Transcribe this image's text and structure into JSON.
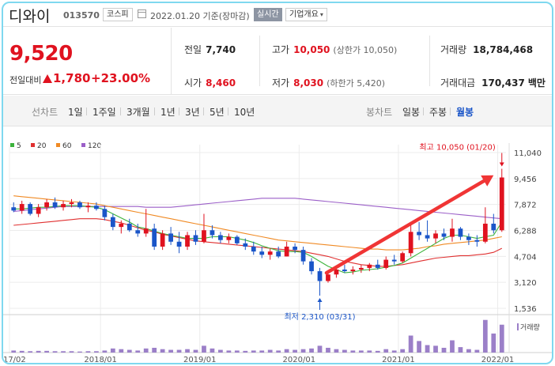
{
  "header": {
    "stock_name": "디와이",
    "stock_code": "013570",
    "market": "코스피",
    "date": "2022.01.20 기준(장마감)",
    "realtime": "실시간",
    "company_info": "기업개요",
    "chevron": "▾"
  },
  "price": {
    "current": "9,520",
    "change_label": "전일대비",
    "change_value": "1,780",
    "change_pct": "+23.00%"
  },
  "stats": {
    "prev_close_label": "전일",
    "prev_close": "7,740",
    "open_label": "시가",
    "open": "8,460",
    "high_label": "고가",
    "high": "10,050",
    "high_sub": "(상한가 10,050)",
    "low_label": "저가",
    "low": "8,030",
    "low_sub": "(하한가 5,420)",
    "volume_label": "거래량",
    "volume": "18,784,468",
    "amount_label": "거래대금",
    "amount": "170,437",
    "amount_unit": "백만"
  },
  "toolbar": {
    "line_chart": "선차트",
    "periods": [
      "1일",
      "1주일",
      "3개월",
      "1년",
      "3년",
      "5년",
      "10년"
    ],
    "candle_chart": "봉차트",
    "candle_types": [
      "일봉",
      "주봉",
      "월봉"
    ],
    "active_candle": "월봉"
  },
  "chart_data": {
    "type": "candlestick",
    "legend": [
      {
        "name": "5",
        "color": "#3cb33c"
      },
      {
        "name": "20",
        "color": "#e03030"
      },
      {
        "name": "60",
        "color": "#f08a24"
      },
      {
        "name": "120",
        "color": "#9b5fc8"
      }
    ],
    "y_ticks": [
      "11,040",
      "9,456",
      "7,872",
      "6,288",
      "4,704",
      "3,120",
      "1,536"
    ],
    "y_range": [
      1536,
      11040
    ],
    "x_ticks": [
      {
        "label": "2017/02",
        "i": 0
      },
      {
        "label": "2018/01",
        "i": 11
      },
      {
        "label": "2019/01",
        "i": 23
      },
      {
        "label": "2020/01",
        "i": 35
      },
      {
        "label": "2021/01",
        "i": 47
      },
      {
        "label": "2022/01",
        "i": 59
      }
    ],
    "volume_label": "거래량",
    "max_annotation": "최고 10,050 (01/20)",
    "min_annotation": "최저 2,310 (03/31)",
    "max_point": {
      "i": 59,
      "value": 10050
    },
    "min_point": {
      "i": 37,
      "value": 2310
    },
    "candles": [
      {
        "o": 7700,
        "h": 8000,
        "l": 7400,
        "c": 7500
      },
      {
        "o": 7500,
        "h": 8100,
        "l": 7300,
        "c": 7900
      },
      {
        "o": 7900,
        "h": 8000,
        "l": 7200,
        "c": 7300
      },
      {
        "o": 7300,
        "h": 7900,
        "l": 7100,
        "c": 7700
      },
      {
        "o": 7700,
        "h": 8200,
        "l": 7500,
        "c": 8000
      },
      {
        "o": 8000,
        "h": 8300,
        "l": 7600,
        "c": 7700
      },
      {
        "o": 7700,
        "h": 8100,
        "l": 7500,
        "c": 7900
      },
      {
        "o": 7900,
        "h": 8200,
        "l": 7700,
        "c": 8000
      },
      {
        "o": 8000,
        "h": 8100,
        "l": 7600,
        "c": 7700
      },
      {
        "o": 7700,
        "h": 8000,
        "l": 7400,
        "c": 7800
      },
      {
        "o": 7800,
        "h": 8000,
        "l": 7500,
        "c": 7600
      },
      {
        "o": 7600,
        "h": 7800,
        "l": 6900,
        "c": 7100
      },
      {
        "o": 7100,
        "h": 7300,
        "l": 6300,
        "c": 6500
      },
      {
        "o": 6500,
        "h": 6900,
        "l": 6100,
        "c": 6700
      },
      {
        "o": 6700,
        "h": 7000,
        "l": 6200,
        "c": 6300
      },
      {
        "o": 6300,
        "h": 6700,
        "l": 5900,
        "c": 6100
      },
      {
        "o": 6100,
        "h": 7600,
        "l": 5900,
        "c": 6400
      },
      {
        "o": 6400,
        "h": 6700,
        "l": 5100,
        "c": 5300
      },
      {
        "o": 5300,
        "h": 6300,
        "l": 5100,
        "c": 6100
      },
      {
        "o": 6100,
        "h": 6500,
        "l": 5400,
        "c": 5600
      },
      {
        "o": 5600,
        "h": 6200,
        "l": 4900,
        "c": 5300
      },
      {
        "o": 5300,
        "h": 6200,
        "l": 5100,
        "c": 6000
      },
      {
        "o": 6000,
        "h": 6300,
        "l": 5400,
        "c": 5600
      },
      {
        "o": 5600,
        "h": 7300,
        "l": 5500,
        "c": 6300
      },
      {
        "o": 6300,
        "h": 6600,
        "l": 5800,
        "c": 6000
      },
      {
        "o": 6000,
        "h": 6200,
        "l": 5500,
        "c": 5700
      },
      {
        "o": 5700,
        "h": 6100,
        "l": 5500,
        "c": 5900
      },
      {
        "o": 5900,
        "h": 6000,
        "l": 5400,
        "c": 5500
      },
      {
        "o": 5500,
        "h": 5800,
        "l": 5100,
        "c": 5300
      },
      {
        "o": 5300,
        "h": 5600,
        "l": 4800,
        "c": 5000
      },
      {
        "o": 5000,
        "h": 5300,
        "l": 4600,
        "c": 4800
      },
      {
        "o": 4800,
        "h": 5200,
        "l": 4500,
        "c": 5000
      },
      {
        "o": 5000,
        "h": 5300,
        "l": 4600,
        "c": 4700
      },
      {
        "o": 4700,
        "h": 5600,
        "l": 4700,
        "c": 5300
      },
      {
        "o": 5300,
        "h": 5500,
        "l": 4900,
        "c": 5100
      },
      {
        "o": 5100,
        "h": 5300,
        "l": 4200,
        "c": 4400
      },
      {
        "o": 4400,
        "h": 4600,
        "l": 3600,
        "c": 3800
      },
      {
        "o": 3800,
        "h": 4000,
        "l": 2310,
        "c": 3200
      },
      {
        "o": 3200,
        "h": 3800,
        "l": 3100,
        "c": 3600
      },
      {
        "o": 3600,
        "h": 4100,
        "l": 3400,
        "c": 3900
      },
      {
        "o": 3900,
        "h": 4200,
        "l": 3700,
        "c": 3800
      },
      {
        "o": 3800,
        "h": 4100,
        "l": 3600,
        "c": 3900
      },
      {
        "o": 3900,
        "h": 4200,
        "l": 3700,
        "c": 4000
      },
      {
        "o": 4000,
        "h": 4300,
        "l": 3800,
        "c": 4200
      },
      {
        "o": 4200,
        "h": 4500,
        "l": 3900,
        "c": 4000
      },
      {
        "o": 4000,
        "h": 4700,
        "l": 3900,
        "c": 4500
      },
      {
        "o": 4500,
        "h": 4800,
        "l": 4200,
        "c": 4400
      },
      {
        "o": 4400,
        "h": 5000,
        "l": 4300,
        "c": 4900
      },
      {
        "o": 4900,
        "h": 6600,
        "l": 4700,
        "c": 6200
      },
      {
        "o": 6200,
        "h": 6800,
        "l": 5700,
        "c": 6000
      },
      {
        "o": 6000,
        "h": 6900,
        "l": 5600,
        "c": 5800
      },
      {
        "o": 5800,
        "h": 6300,
        "l": 5500,
        "c": 6100
      },
      {
        "o": 6100,
        "h": 6400,
        "l": 5700,
        "c": 5900
      },
      {
        "o": 5900,
        "h": 7000,
        "l": 5600,
        "c": 6400
      },
      {
        "o": 6400,
        "h": 6500,
        "l": 5700,
        "c": 5900
      },
      {
        "o": 5900,
        "h": 6100,
        "l": 5400,
        "c": 5700
      },
      {
        "o": 5700,
        "h": 6000,
        "l": 5300,
        "c": 5600
      },
      {
        "o": 5600,
        "h": 7700,
        "l": 5500,
        "c": 6700
      },
      {
        "o": 6700,
        "h": 7300,
        "l": 6100,
        "c": 6300
      },
      {
        "o": 6300,
        "h": 10050,
        "l": 6200,
        "c": 9520
      }
    ],
    "volumes": [
      0.06,
      0.05,
      0.04,
      0.05,
      0.05,
      0.04,
      0.04,
      0.04,
      0.03,
      0.04,
      0.04,
      0.06,
      0.12,
      0.1,
      0.08,
      0.06,
      0.12,
      0.14,
      0.1,
      0.08,
      0.08,
      0.1,
      0.08,
      0.2,
      0.12,
      0.08,
      0.06,
      0.06,
      0.05,
      0.06,
      0.06,
      0.08,
      0.06,
      0.1,
      0.08,
      0.1,
      0.12,
      0.2,
      0.14,
      0.1,
      0.08,
      0.06,
      0.06,
      0.06,
      0.05,
      0.1,
      0.06,
      0.1,
      0.5,
      0.34,
      0.22,
      0.2,
      0.14,
      0.36,
      0.16,
      0.1,
      0.08,
      0.96,
      0.56,
      0.82
    ],
    "ma5": [
      7600,
      7600,
      7650,
      7700,
      7700,
      7750,
      7800,
      7800,
      7800,
      7750,
      7700,
      7550,
      7300,
      7050,
      6800,
      6500,
      6400,
      6250,
      6100,
      6000,
      5900,
      5800,
      5800,
      5800,
      5900,
      5900,
      5900,
      5800,
      5700,
      5550,
      5350,
      5200,
      5050,
      5000,
      5000,
      4950,
      4700,
      4400,
      4100,
      3900,
      3700,
      3750,
      3850,
      3900,
      3950,
      4050,
      4150,
      4300,
      4600,
      4900,
      5200,
      5500,
      5800,
      6000,
      6000,
      5900,
      5800,
      5900,
      6000,
      6800
    ],
    "ma20": [
      6600,
      6650,
      6700,
      6750,
      6800,
      6850,
      6900,
      6950,
      7000,
      7000,
      7000,
      6950,
      6850,
      6750,
      6600,
      6450,
      6300,
      6200,
      6050,
      5950,
      5850,
      5750,
      5650,
      5600,
      5550,
      5500,
      5450,
      5400,
      5350,
      5300,
      5250,
      5200,
      5150,
      5100,
      5050,
      5000,
      4900,
      4800,
      4700,
      4550,
      4400,
      4300,
      4200,
      4150,
      4100,
      4100,
      4150,
      4200,
      4300,
      4400,
      4500,
      4600,
      4650,
      4700,
      4750,
      4750,
      4800,
      4850,
      4950,
      5200
    ],
    "ma60": [
      8400,
      8350,
      8300,
      8250,
      8200,
      8150,
      8100,
      8050,
      8000,
      7950,
      7900,
      7800,
      7700,
      7600,
      7500,
      7400,
      7300,
      7200,
      7100,
      7000,
      6900,
      6800,
      6700,
      6600,
      6500,
      6400,
      6300,
      6200,
      6100,
      6000,
      5900,
      5800,
      5700,
      5650,
      5600,
      5550,
      5500,
      5450,
      5400,
      5350,
      5300,
      5250,
      5200,
      5150,
      5150,
      5100,
      5100,
      5100,
      5150,
      5200,
      5300,
      5350,
      5450,
      5500,
      5550,
      5600,
      5650,
      5700,
      5800,
      5900
    ],
    "ma120": [
      7450,
      7500,
      7550,
      7600,
      7650,
      7700,
      7750,
      7750,
      7750,
      7750,
      7750,
      7750,
      7750,
      7750,
      7750,
      7750,
      7700,
      7700,
      7700,
      7700,
      7750,
      7800,
      7850,
      7900,
      7950,
      8000,
      8050,
      8100,
      8150,
      8200,
      8250,
      8250,
      8250,
      8250,
      8250,
      8200,
      8150,
      8100,
      8050,
      8000,
      7950,
      7900,
      7850,
      7800,
      7750,
      7700,
      7650,
      7600,
      7550,
      7500,
      7450,
      7400,
      7350,
      7300,
      7250,
      7200,
      7150,
      7100,
      7050,
      7000
    ]
  }
}
